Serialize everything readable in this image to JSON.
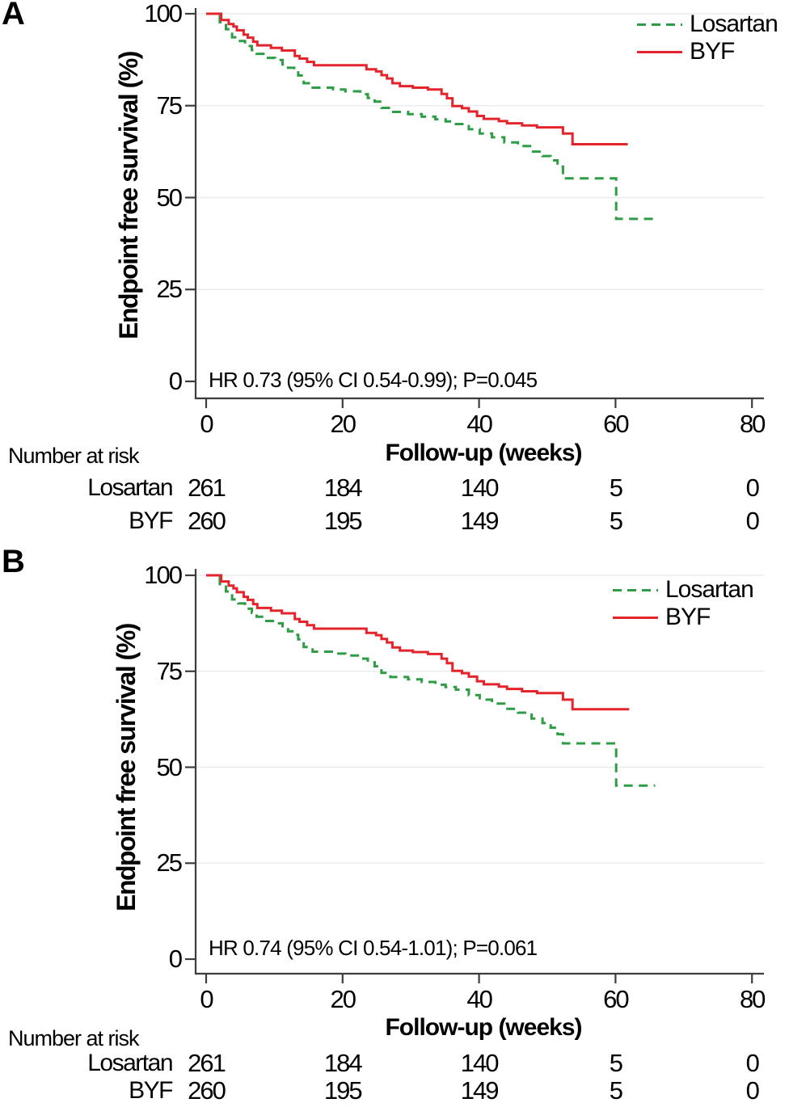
{
  "chart_data": [
    {
      "type": "line",
      "subtype": "kaplan_meier_step",
      "panel_label": "A",
      "title": "",
      "ylabel": "Endpoint free survival (%)",
      "xlabel": "Follow-up (weeks)",
      "xlim": [
        0,
        80
      ],
      "ylim": [
        0,
        100
      ],
      "x_ticks": [
        0,
        20,
        40,
        60,
        80
      ],
      "y_ticks": [
        100,
        75,
        50,
        25,
        0
      ],
      "grid": "horizontal",
      "legend_position": "top-right",
      "annotation": "HR 0.73 (95% CI 0.54-0.99); P=0.045",
      "series": [
        {
          "name": "Losartan",
          "color": "#2f9c46",
          "line": "dashed",
          "step_points": [
            [
              0,
              100
            ],
            [
              2,
              97.7
            ],
            [
              2.9,
              95.8
            ],
            [
              3.8,
              93.6
            ],
            [
              4.7,
              92.6
            ],
            [
              5.7,
              91.2
            ],
            [
              6.7,
              90.1
            ],
            [
              7.4,
              89.1
            ],
            [
              8.6,
              88
            ],
            [
              10.1,
              87.4
            ],
            [
              11.2,
              86.2
            ],
            [
              12,
              85.3
            ],
            [
              12.9,
              84.4
            ],
            [
              13.5,
              83.2
            ],
            [
              14.3,
              81.1
            ],
            [
              15.6,
              79.9
            ],
            [
              18.6,
              79.4
            ],
            [
              20.4,
              78.9
            ],
            [
              22.6,
              78.1
            ],
            [
              23.7,
              77.1
            ],
            [
              24.7,
              76.1
            ],
            [
              25.7,
              74.4
            ],
            [
              27,
              73.3
            ],
            [
              29.6,
              72.7
            ],
            [
              31.6,
              72
            ],
            [
              33.6,
              71.3
            ],
            [
              35.1,
              70.7
            ],
            [
              36.6,
              70
            ],
            [
              38.5,
              68.6
            ],
            [
              40.1,
              67.4
            ],
            [
              41.9,
              66.4
            ],
            [
              43.7,
              65
            ],
            [
              45.7,
              64
            ],
            [
              47.7,
              62.5
            ],
            [
              49.3,
              61.3
            ],
            [
              50.5,
              60.1
            ],
            [
              51.5,
              58.4
            ],
            [
              52.3,
              55.2
            ],
            [
              60.1,
              44.2
            ],
            [
              65.8,
              44.2
            ]
          ]
        },
        {
          "name": "BYF",
          "color": "#e3242b",
          "line": "solid",
          "step_points": [
            [
              0,
              100
            ],
            [
              2.2,
              98.3
            ],
            [
              3.3,
              97.2
            ],
            [
              4,
              96.5
            ],
            [
              4.5,
              95.5
            ],
            [
              5.5,
              94.3
            ],
            [
              6.1,
              93.5
            ],
            [
              6.9,
              92.4
            ],
            [
              7.5,
              91.4
            ],
            [
              9.5,
              90.7
            ],
            [
              11.1,
              90
            ],
            [
              13,
              88.5
            ],
            [
              13.7,
              87.8
            ],
            [
              14.8,
              86.9
            ],
            [
              15.8,
              86
            ],
            [
              23.5,
              84.9
            ],
            [
              24.9,
              84.3
            ],
            [
              25.7,
              83.3
            ],
            [
              26.5,
              82.4
            ],
            [
              27.3,
              81.1
            ],
            [
              28.4,
              80.3
            ],
            [
              30.3,
              79.9
            ],
            [
              32.5,
              79.4
            ],
            [
              34.5,
              78.2
            ],
            [
              35.3,
              77
            ],
            [
              36.1,
              74.9
            ],
            [
              37.5,
              74.3
            ],
            [
              38.5,
              73.4
            ],
            [
              39.7,
              72.2
            ],
            [
              40.7,
              71.4
            ],
            [
              42.9,
              70.8
            ],
            [
              44.1,
              70.2
            ],
            [
              46.3,
              69.6
            ],
            [
              48.5,
              69.1
            ],
            [
              52.3,
              67.4
            ],
            [
              53.7,
              64.5
            ],
            [
              61.8,
              64.5
            ]
          ]
        }
      ],
      "risk_table": {
        "title": "Number at risk",
        "columns": [
          0,
          20,
          40,
          60,
          80
        ],
        "rows": [
          {
            "label": "Losartan",
            "values": [
              "261",
              "184",
              "140",
              "5",
              "0"
            ]
          },
          {
            "label": "BYF",
            "values": [
              "260",
              "195",
              "149",
              "5",
              "0"
            ]
          }
        ]
      }
    },
    {
      "type": "line",
      "subtype": "kaplan_meier_step",
      "panel_label": "B",
      "title": "",
      "ylabel": "Endpoint free survival (%)",
      "xlabel": "Follow-up (weeks)",
      "xlim": [
        0,
        80
      ],
      "ylim": [
        0,
        100
      ],
      "x_ticks": [
        0,
        20,
        40,
        60,
        80
      ],
      "y_ticks": [
        100,
        75,
        50,
        25,
        0
      ],
      "grid": "horizontal",
      "legend_position": "top-right",
      "annotation": "HR 0.74 (95% CI 0.54-1.01); P=0.061",
      "series": [
        {
          "name": "Losartan",
          "color": "#2f9c46",
          "line": "dashed",
          "step_points": [
            [
              0,
              100
            ],
            [
              2,
              97.7
            ],
            [
              2.9,
              95.8
            ],
            [
              3.8,
              93.7
            ],
            [
              4.7,
              92.7
            ],
            [
              5.7,
              91.3
            ],
            [
              6.7,
              90.2
            ],
            [
              7.4,
              89.2
            ],
            [
              8.6,
              88.1
            ],
            [
              10.1,
              87.5
            ],
            [
              11.2,
              86.3
            ],
            [
              12,
              85.4
            ],
            [
              12.9,
              84.5
            ],
            [
              13.5,
              83.3
            ],
            [
              14.3,
              81.3
            ],
            [
              15.6,
              80.1
            ],
            [
              18.6,
              79.6
            ],
            [
              20.4,
              79.1
            ],
            [
              22.6,
              78.3
            ],
            [
              23.7,
              77.3
            ],
            [
              24.7,
              76.3
            ],
            [
              25.7,
              74.6
            ],
            [
              27,
              73.5
            ],
            [
              29.6,
              72.9
            ],
            [
              31.6,
              72.2
            ],
            [
              33.6,
              71.5
            ],
            [
              35.1,
              70.9
            ],
            [
              36.6,
              70.2
            ],
            [
              38.5,
              68.8
            ],
            [
              40.1,
              67.6
            ],
            [
              41.9,
              66.6
            ],
            [
              43.7,
              65.2
            ],
            [
              45.7,
              64.2
            ],
            [
              47.7,
              62.7
            ],
            [
              49.3,
              61.5
            ],
            [
              50.5,
              60.3
            ],
            [
              51.5,
              58.6
            ],
            [
              52.3,
              56.2
            ],
            [
              60.1,
              45.2
            ],
            [
              65.8,
              45.2
            ]
          ]
        },
        {
          "name": "BYF",
          "color": "#e3242b",
          "line": "solid",
          "step_points": [
            [
              0,
              100
            ],
            [
              2.2,
              98.4
            ],
            [
              3.3,
              97.3
            ],
            [
              4,
              96.6
            ],
            [
              4.5,
              95.6
            ],
            [
              5.5,
              94.4
            ],
            [
              6.1,
              93.6
            ],
            [
              6.9,
              92.5
            ],
            [
              7.5,
              91.5
            ],
            [
              9.5,
              90.8
            ],
            [
              11.1,
              90.1
            ],
            [
              13,
              88.6
            ],
            [
              13.7,
              87.9
            ],
            [
              14.8,
              87
            ],
            [
              15.8,
              86.1
            ],
            [
              23.5,
              85
            ],
            [
              24.9,
              84.4
            ],
            [
              25.7,
              83.4
            ],
            [
              26.5,
              82.5
            ],
            [
              27.3,
              81.2
            ],
            [
              28.4,
              80.4
            ],
            [
              30.3,
              80
            ],
            [
              32.5,
              79.5
            ],
            [
              34.5,
              78.3
            ],
            [
              35.3,
              77.1
            ],
            [
              36.1,
              75.1
            ],
            [
              37.5,
              74.5
            ],
            [
              38.5,
              73.6
            ],
            [
              39.7,
              72.4
            ],
            [
              40.7,
              71.6
            ],
            [
              42.9,
              71
            ],
            [
              44.1,
              70.4
            ],
            [
              46.3,
              69.8
            ],
            [
              48.5,
              69.3
            ],
            [
              52.3,
              67.6
            ],
            [
              53.7,
              65.1
            ],
            [
              62,
              65.1
            ]
          ]
        }
      ],
      "risk_table": {
        "title": "Number at risk",
        "columns": [
          0,
          20,
          40,
          60,
          80
        ],
        "rows": [
          {
            "label": "Losartan",
            "values": [
              "261",
              "184",
              "140",
              "5",
              "0"
            ]
          },
          {
            "label": "BYF",
            "values": [
              "260",
              "195",
              "149",
              "5",
              "0"
            ]
          }
        ]
      }
    }
  ]
}
